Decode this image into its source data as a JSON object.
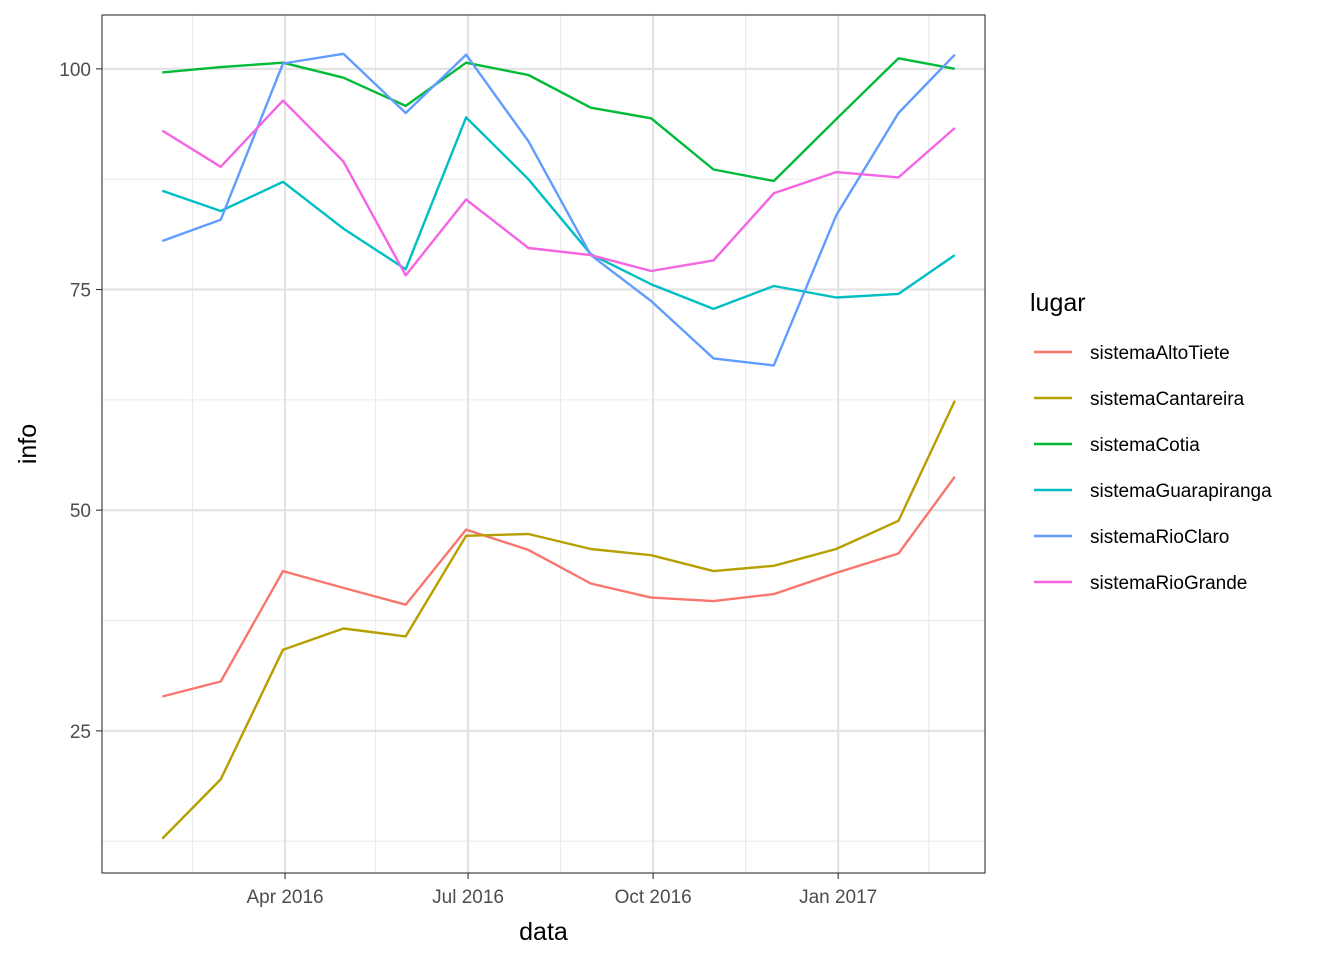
{
  "chart_data": {
    "type": "line",
    "xlabel": "data",
    "ylabel": "info",
    "x_tick_labels": [
      "Apr 2016",
      "Jul 2016",
      "Oct 2016",
      "Jan 2017"
    ],
    "x_tick_dates": [
      "2016-04-01",
      "2016-07-01",
      "2016-10-01",
      "2017-01-01"
    ],
    "x_minor_dates": [
      "2016-02-15",
      "2016-05-16",
      "2016-08-16",
      "2016-11-16",
      "2017-02-15"
    ],
    "xlim": [
      "2016-01-01",
      "2017-03-15"
    ],
    "y_ticks": [
      25,
      50,
      75,
      100
    ],
    "ylim": [
      8.9,
      106.1
    ],
    "grid": true,
    "legend": {
      "title": "lugar",
      "position": "right"
    },
    "x": [
      "2016-01-31",
      "2016-02-29",
      "2016-03-31",
      "2016-04-30",
      "2016-05-31",
      "2016-06-30",
      "2016-07-31",
      "2016-08-31",
      "2016-09-30",
      "2016-10-31",
      "2016-11-30",
      "2016-12-31",
      "2017-01-31",
      "2017-02-28"
    ],
    "series": [
      {
        "name": "sistemaAltoTiete",
        "color": "#F8766D",
        "values": [
          28.9,
          30.6,
          43.1,
          41.2,
          39.3,
          47.8,
          45.5,
          41.7,
          40.1,
          39.7,
          40.5,
          42.9,
          45.1,
          53.8
        ]
      },
      {
        "name": "sistemaCantareira",
        "color": "#B79F00",
        "values": [
          12.8,
          19.5,
          34.2,
          36.6,
          35.7,
          47.1,
          47.3,
          45.6,
          44.9,
          43.1,
          43.7,
          45.6,
          48.8,
          62.4
        ]
      },
      {
        "name": "sistemaCotia",
        "color": "#00BA38",
        "values": [
          99.6,
          100.2,
          100.7,
          99.0,
          95.8,
          100.7,
          99.3,
          95.6,
          94.4,
          88.6,
          87.3,
          94.3,
          101.2,
          100.0
        ]
      },
      {
        "name": "sistemaGuarapiranga",
        "color": "#00BFC4",
        "values": [
          86.2,
          83.9,
          87.2,
          81.9,
          77.3,
          94.5,
          87.5,
          79.0,
          75.6,
          72.8,
          75.4,
          74.1,
          74.5,
          78.9
        ]
      },
      {
        "name": "sistemaRioClaro",
        "color": "#619CFF",
        "values": [
          80.5,
          82.9,
          100.6,
          101.7,
          95.0,
          101.6,
          91.8,
          78.9,
          73.7,
          67.2,
          66.4,
          83.4,
          95.0,
          101.6
        ]
      },
      {
        "name": "sistemaRioGrande",
        "color": "#F564E3",
        "values": [
          93.0,
          88.9,
          96.4,
          89.5,
          76.6,
          85.2,
          79.7,
          78.9,
          77.1,
          78.3,
          85.9,
          88.3,
          87.7,
          93.3
        ]
      }
    ]
  }
}
